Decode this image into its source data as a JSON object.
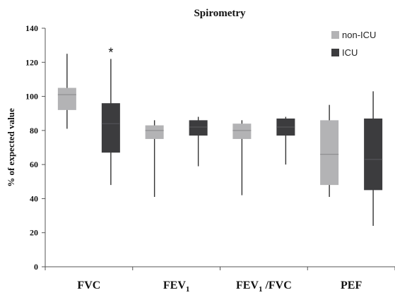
{
  "chart_data": {
    "type": "box",
    "title": "Spirometry",
    "ylabel": "% of expected value",
    "ylim": [
      0,
      140
    ],
    "yticks": [
      0,
      20,
      40,
      60,
      80,
      100,
      120,
      140
    ],
    "categories": [
      {
        "main": "FVC",
        "sub": "",
        "suffix": ""
      },
      {
        "main": "FEV",
        "sub": "1",
        "suffix": ""
      },
      {
        "main": "FEV",
        "sub": "1",
        "suffix": " /FVC"
      },
      {
        "main": "PEF",
        "sub": "",
        "suffix": ""
      }
    ],
    "series": [
      {
        "name": "non-ICU",
        "color": "#b3b3b5",
        "boxes": [
          {
            "min": 81,
            "q1": 92,
            "median": 101,
            "q3": 105,
            "max": 125
          },
          {
            "min": 41,
            "q1": 75,
            "median": 80,
            "q3": 83,
            "max": 86
          },
          {
            "min": 42,
            "q1": 75,
            "median": 80,
            "q3": 84,
            "max": 86
          },
          {
            "min": 41,
            "q1": 48,
            "median": 66,
            "q3": 86,
            "max": 95
          }
        ]
      },
      {
        "name": "ICU",
        "color": "#3c3c3e",
        "boxes": [
          {
            "min": 48,
            "q1": 67,
            "median": 84,
            "q3": 96,
            "max": 122
          },
          {
            "min": 59,
            "q1": 77,
            "median": 82,
            "q3": 86,
            "max": 88
          },
          {
            "min": 60,
            "q1": 77,
            "median": 82,
            "q3": 87,
            "max": 88
          },
          {
            "min": 24,
            "q1": 45,
            "median": 63,
            "q3": 87,
            "max": 103
          }
        ]
      }
    ],
    "annotations": [
      {
        "text": "*",
        "category_index": 0,
        "series_index": 1
      }
    ],
    "legend_position": "top-right",
    "grid": false
  }
}
